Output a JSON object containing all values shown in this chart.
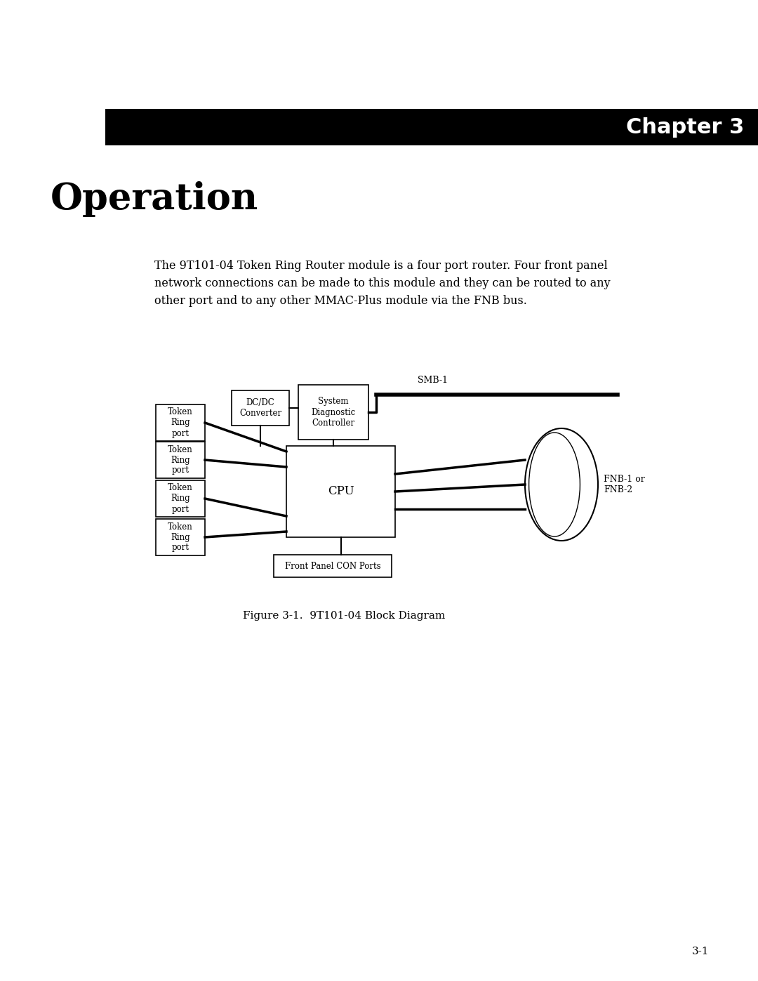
{
  "page_bg": "#ffffff",
  "chapter_bar_color": "#000000",
  "chapter_text": "Chapter 3",
  "chapter_text_color": "#ffffff",
  "section_title": "Operation",
  "body_text": "The 9T101-04 Token Ring Router module is a four port router. Four front panel\nnetwork connections can be made to this module and they can be routed to any\nother port and to any other MMAC-Plus module via the FNB bus.",
  "figure_caption": "Figure 3-1.  9T101-04 Block Diagram",
  "page_number": "3-1",
  "diagram": {
    "token_ring_ports": [
      "Token\nRing\nport",
      "Token\nRing\nport",
      "Token\nRing\nport",
      "Token\nRing\nport"
    ],
    "dc_dc_label": "DC/DC\nConverter",
    "sys_diag_label": "System\nDiagnostic\nController",
    "cpu_label": "CPU",
    "front_panel_label": "Front Panel CON Ports",
    "smb_label": "SMB-1",
    "fnb_label": "FNB-1 or\nFNB-2"
  }
}
